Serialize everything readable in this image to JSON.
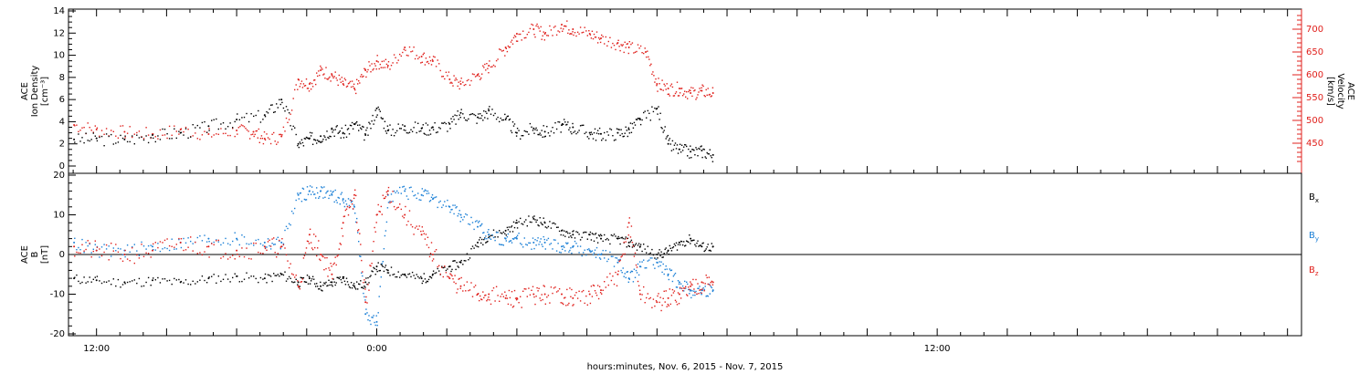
{
  "chart_data": [
    {
      "type": "scatter",
      "xlabel": "hours:minutes, Nov.  6, 2015 - Nov.  7, 2015",
      "x_ticks": [
        "12:00",
        "0:00",
        "12:00"
      ],
      "xlim": [
        -0.55,
        1.65
      ],
      "y_left_label": [
        "ACE",
        "Ion Density",
        "[cm⁻³]"
      ],
      "y_left_ticks": [
        "0",
        "2",
        "4",
        "6",
        "8",
        "10",
        "12",
        "14"
      ],
      "y_left_lim": [
        0,
        14
      ],
      "y_right_label": [
        "ACE",
        "Velocity",
        "[km/s]"
      ],
      "y_right_ticks": [
        "450",
        "500",
        "550",
        "600",
        "650",
        "700"
      ],
      "y_right_lim": [
        400,
        740
      ],
      "series": [
        {
          "axis": "left",
          "color": "#000000",
          "x": [
            -0.54,
            -0.5,
            -0.45,
            -0.4,
            -0.35,
            -0.3,
            -0.25,
            -0.2,
            -0.17,
            -0.14,
            -0.12,
            -0.1,
            -0.08,
            -0.06,
            -0.04,
            -0.02,
            0.0,
            0.02,
            0.05,
            0.08,
            0.1,
            0.13,
            0.15,
            0.18,
            0.2,
            0.23,
            0.25,
            0.28,
            0.3,
            0.33,
            0.35,
            0.38,
            0.4,
            0.43,
            0.45,
            0.47,
            0.5,
            0.52,
            0.54,
            0.56,
            0.58,
            0.6
          ],
          "y": [
            2.4,
            2.5,
            2.4,
            2.8,
            3.0,
            3.6,
            4.2,
            4.6,
            6.0,
            2.0,
            2.5,
            2.7,
            3.4,
            3.0,
            3.8,
            2.8,
            5.2,
            3.2,
            3.6,
            3.4,
            3.5,
            3.8,
            4.8,
            4.4,
            5.0,
            4.2,
            3.0,
            3.4,
            3.1,
            3.7,
            3.5,
            3.0,
            2.9,
            3.0,
            3.3,
            4.2,
            5.2,
            2.0,
            1.5,
            1.3,
            1.4,
            1.0
          ]
        },
        {
          "axis": "right",
          "color": "#e0201c",
          "x": [
            -0.54,
            -0.5,
            -0.45,
            -0.4,
            -0.35,
            -0.3,
            -0.25,
            -0.22,
            -0.2,
            -0.17,
            -0.14,
            -0.12,
            -0.1,
            -0.08,
            -0.06,
            -0.04,
            -0.02,
            0.0,
            0.02,
            0.05,
            0.08,
            0.1,
            0.13,
            0.15,
            0.18,
            0.2,
            0.23,
            0.25,
            0.28,
            0.3,
            0.33,
            0.35,
            0.38,
            0.4,
            0.43,
            0.45,
            0.48,
            0.5,
            0.52,
            0.54,
            0.56,
            0.58,
            0.6
          ],
          "y": [
            490,
            480,
            475,
            470,
            480,
            470,
            478,
            475,
            460,
            465,
            590,
            580,
            610,
            600,
            580,
            570,
            610,
            630,
            620,
            660,
            640,
            630,
            590,
            580,
            600,
            620,
            660,
            690,
            700,
            690,
            710,
            700,
            690,
            680,
            670,
            660,
            650,
            580,
            570,
            570,
            560,
            565,
            560
          ]
        }
      ]
    },
    {
      "type": "scatter",
      "x_ticks": [
        "12:00",
        "0:00",
        "12:00"
      ],
      "xlim": [
        -0.55,
        1.65
      ],
      "y_label": [
        "ACE",
        "B",
        "[nT]"
      ],
      "y_ticks": [
        "-20",
        "-10",
        "0",
        "10",
        "20"
      ],
      "ylim": [
        -20,
        20
      ],
      "legend": [
        "Bx",
        "By",
        "Bz"
      ],
      "legend_position": "right",
      "series": [
        {
          "name": "Bx",
          "color": "#000000",
          "x": [
            -0.54,
            -0.5,
            -0.45,
            -0.4,
            -0.35,
            -0.3,
            -0.25,
            -0.2,
            -0.17,
            -0.14,
            -0.12,
            -0.1,
            -0.08,
            -0.06,
            -0.04,
            -0.02,
            0.0,
            0.02,
            0.05,
            0.08,
            0.1,
            0.13,
            0.15,
            0.18,
            0.2,
            0.23,
            0.25,
            0.28,
            0.3,
            0.33,
            0.35,
            0.38,
            0.4,
            0.43,
            0.45,
            0.47,
            0.5,
            0.52,
            0.54,
            0.56,
            0.58,
            0.6
          ],
          "y": [
            -6,
            -6.5,
            -7,
            -6.5,
            -7,
            -6,
            -5.5,
            -6,
            -5,
            -7,
            -6,
            -8,
            -7,
            -6,
            -8,
            -7,
            -3,
            -4,
            -5,
            -6,
            -5,
            -3,
            -2,
            3,
            5,
            6,
            8,
            9,
            8,
            6,
            5,
            5,
            4,
            4,
            3,
            2,
            0,
            1,
            3,
            4,
            2,
            2
          ]
        },
        {
          "name": "By",
          "color": "#1a7fd6",
          "x": [
            -0.54,
            -0.5,
            -0.45,
            -0.4,
            -0.35,
            -0.3,
            -0.25,
            -0.2,
            -0.17,
            -0.14,
            -0.12,
            -0.1,
            -0.08,
            -0.06,
            -0.04,
            -0.02,
            0.0,
            0.02,
            0.05,
            0.08,
            0.1,
            0.13,
            0.15,
            0.18,
            0.2,
            0.23,
            0.25,
            0.28,
            0.3,
            0.33,
            0.35,
            0.38,
            0.4,
            0.43,
            0.45,
            0.47,
            0.5,
            0.52,
            0.54,
            0.56,
            0.58,
            0.6
          ],
          "y": [
            3,
            1,
            1,
            2,
            3,
            4,
            4,
            3,
            3,
            15,
            16,
            16,
            15,
            14,
            12,
            -15,
            -17,
            15,
            16,
            15,
            14,
            12,
            10,
            7,
            5,
            4,
            4,
            3,
            3,
            2,
            2,
            1,
            0,
            -2,
            -6,
            -3,
            -2,
            -5,
            -7,
            -9,
            -9,
            -9
          ]
        },
        {
          "name": "Bz",
          "color": "#e0201c",
          "x": [
            -0.54,
            -0.5,
            -0.45,
            -0.4,
            -0.35,
            -0.3,
            -0.25,
            -0.2,
            -0.17,
            -0.14,
            -0.12,
            -0.1,
            -0.08,
            -0.06,
            -0.04,
            -0.02,
            0.0,
            0.02,
            0.05,
            0.08,
            0.1,
            0.13,
            0.15,
            0.18,
            0.2,
            0.23,
            0.25,
            0.28,
            0.3,
            0.33,
            0.35,
            0.38,
            0.4,
            0.43,
            0.45,
            0.47,
            0.5,
            0.52,
            0.54,
            0.56,
            0.58,
            0.6
          ],
          "y": [
            2,
            1,
            0,
            1,
            3,
            2,
            1,
            2,
            2,
            -8,
            5,
            0,
            -5,
            8,
            15,
            -12,
            10,
            16,
            10,
            5,
            0,
            -6,
            -8,
            -10,
            -10,
            -11,
            -11,
            -10,
            -10,
            -10,
            -11,
            -10,
            -9,
            -5,
            8,
            -10,
            -12,
            -11,
            -10,
            -8,
            -7,
            -7
          ]
        }
      ]
    }
  ]
}
